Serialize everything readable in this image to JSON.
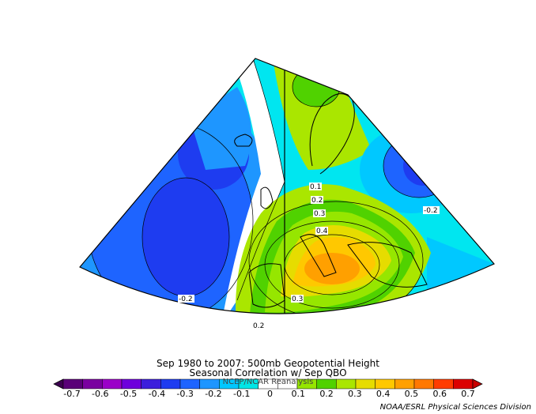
{
  "title": {
    "line1": "Sep 1980 to 2007: 500mb Geopotential Height",
    "line2": "Seasonal Correlation w/ Sep QBO",
    "line3": "NCEP/NCAR Reanalysis"
  },
  "credit": "NOAA/ESRL Physical Sciences Division",
  "map_labels": [
    "0.1",
    "0.2",
    "0.3",
    "0.4",
    "0.3",
    "0.2",
    "-0.2",
    "-0.2"
  ],
  "colorbar": {
    "ticks": [
      "-0.7",
      "-0.6",
      "-0.5",
      "-0.4",
      "-0.3",
      "-0.2",
      "-0.1",
      "0",
      "0.1",
      "0.2",
      "0.3",
      "0.4",
      "0.5",
      "0.6",
      "0.7"
    ],
    "colors": [
      "#5a0078",
      "#7a00a0",
      "#9b00c8",
      "#6e00dc",
      "#3c1edc",
      "#1e3cf0",
      "#1e64ff",
      "#1e96ff",
      "#00c8ff",
      "#00e6e6",
      "#ffffff",
      "#ffffff",
      "#96e600",
      "#50d200",
      "#aae600",
      "#e6dc00",
      "#ffc800",
      "#ffa000",
      "#ff7800",
      "#ff3c00",
      "#dc0000"
    ]
  },
  "chart_data": {
    "type": "heatmap",
    "variable": "500mb Geopotential Height correlation with Sep QBO",
    "period": "Sep 1980 to 2007",
    "contour_labels": [
      0.1,
      0.2,
      0.3,
      0.4,
      0.3,
      0.2,
      -0.2,
      -0.2
    ],
    "color_scale_range": [
      -0.7,
      0.7
    ],
    "color_scale_step": 0.1
  }
}
